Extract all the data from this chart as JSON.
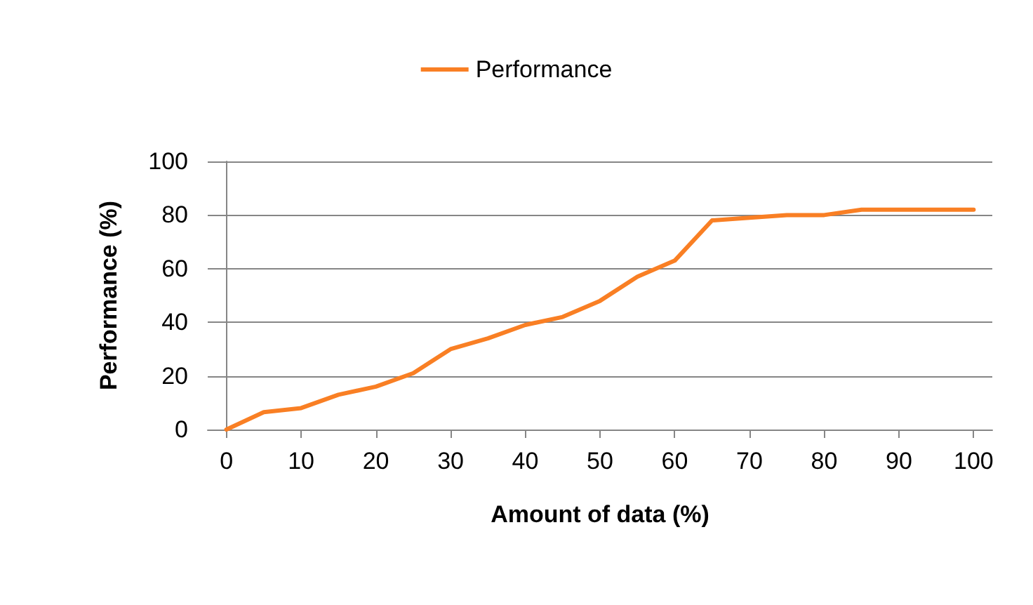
{
  "chart_data": {
    "type": "line",
    "xlabel": "Amount of data (%)",
    "ylabel": "Performance (%)",
    "x": [
      0,
      5,
      10,
      15,
      20,
      25,
      30,
      35,
      40,
      45,
      50,
      55,
      60,
      65,
      70,
      75,
      80,
      85,
      90,
      95,
      100
    ],
    "series": [
      {
        "name": "Performance",
        "color": "#f97f24",
        "values": [
          0,
          6.5,
          8,
          13,
          16,
          21,
          30,
          34,
          39,
          42,
          48,
          57,
          63,
          78,
          79,
          80,
          80,
          82,
          82,
          82,
          82
        ]
      }
    ],
    "xlim": [
      -2.5,
      102.5
    ],
    "xticks": [
      0,
      10,
      20,
      30,
      40,
      50,
      60,
      70,
      80,
      90,
      100
    ],
    "ylim": [
      0,
      100
    ],
    "yticks": [
      0,
      20,
      40,
      60,
      80,
      100
    ],
    "grid": "y",
    "legend": "top",
    "marker": "none",
    "line_style": "solid"
  }
}
